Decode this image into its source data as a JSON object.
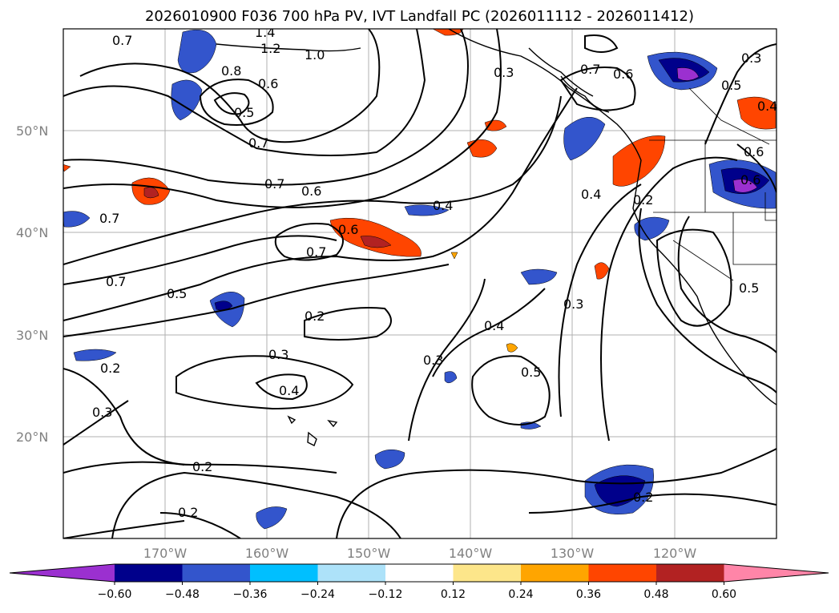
{
  "title": "2026010900 F036 700 hPa PV, IVT Landfall PC (2026011112 - 2026011412)",
  "map": {
    "lat_ticks": [
      "50°N",
      "40°N",
      "30°N",
      "20°N"
    ],
    "lon_ticks": [
      "170°W",
      "160°W",
      "150°W",
      "140°W",
      "130°W",
      "120°W"
    ],
    "contour_labels": [
      "0.7",
      "1.4",
      "1.2",
      "1.0",
      "0.8",
      "0.6",
      "0.5",
      "0.7",
      "0.7",
      "0.6",
      "0.4",
      "0.6",
      "0.7",
      "0.7",
      "0.7",
      "0.5",
      "0.3",
      "0.4",
      "0.3",
      "0.2",
      "0.3",
      "0.4",
      "0.2",
      "0.3",
      "0.2",
      "0.2",
      "0.3",
      "0.7",
      "0.6",
      "0.5",
      "0.4",
      "0.6",
      "0.2",
      "0.3",
      "0.4",
      "0.5",
      "0.2",
      "0.5",
      "0.6"
    ]
  },
  "colorbar": {
    "levels": [
      "−0.60",
      "−0.48",
      "−0.36",
      "−0.24",
      "−0.12",
      "0.12",
      "0.24",
      "0.36",
      "0.48",
      "0.60"
    ],
    "colors": [
      "#9b30d0",
      "#00008b",
      "#3355cc",
      "#00bfff",
      "#ade2f9",
      "#ffffff",
      "#fde68a",
      "#ffa500",
      "#ff4500",
      "#b22222",
      "#ff85a8"
    ]
  }
}
